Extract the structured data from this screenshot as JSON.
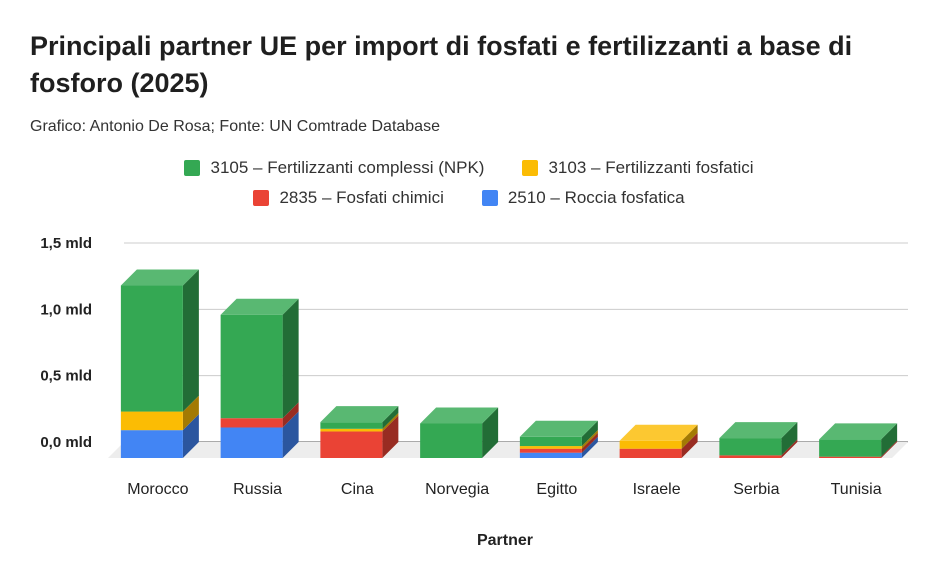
{
  "chart_data": {
    "type": "bar",
    "stacked": true,
    "three_d": true,
    "title": "Principali partner UE per import di fosfati e fertilizzanti a base di fosforo  (2025)",
    "subtitle": "Grafico: Antonio De Rosa; Fonte: UN Comtrade Database",
    "xlabel": "Partner",
    "ylabel": "",
    "ylim": [
      0,
      1.5
    ],
    "yticks": [
      0,
      0.5,
      1.0,
      1.5
    ],
    "ytick_labels": [
      "0,0 mld",
      "0,5 mld",
      "1,0 mld",
      "1,5 mld"
    ],
    "grid": true,
    "legend_position": "top",
    "categories": [
      "Morocco",
      "Russia",
      "Cina",
      "Norvegia",
      "Egitto",
      "Israele",
      "Serbia",
      "Tunisia"
    ],
    "series": [
      {
        "name": "2510 – Roccia fosfatica",
        "color": "#4285F4",
        "values": [
          0.21,
          0.23,
          0.0,
          0.0,
          0.04,
          0.0,
          0.0,
          0.0
        ]
      },
      {
        "name": "2835 – Fosfati chimici",
        "color": "#EA4335",
        "values": [
          0.0,
          0.07,
          0.2,
          0.0,
          0.03,
          0.07,
          0.02,
          0.01
        ]
      },
      {
        "name": "3103 – Fertilizzanti fosfatici",
        "color": "#FBBC04",
        "values": [
          0.14,
          0.0,
          0.02,
          0.0,
          0.02,
          0.06,
          0.0,
          0.0
        ]
      },
      {
        "name": "3105 – Fertilizzanti complessi (NPK)",
        "color": "#34A853",
        "values": [
          0.95,
          0.78,
          0.05,
          0.26,
          0.07,
          0.0,
          0.13,
          0.13
        ]
      }
    ],
    "legend_order": [
      [
        "3105 – Fertilizzanti complessi (NPK)",
        "3103 – Fertilizzanti fosfatici"
      ],
      [
        "2835 – Fosfati chimici",
        "2510 – Roccia fosfatica"
      ]
    ]
  }
}
